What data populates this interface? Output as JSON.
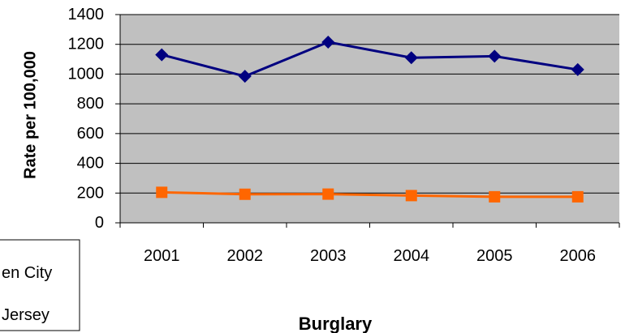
{
  "chart_data": {
    "type": "line",
    "title": "",
    "xlabel": "Burglary",
    "ylabel": "Rate per 100,000",
    "categories": [
      "2001",
      "2002",
      "2003",
      "2004",
      "2005",
      "2006"
    ],
    "ylim": [
      0,
      1400
    ],
    "yticks": [
      0,
      200,
      400,
      600,
      800,
      1000,
      1200,
      1400
    ],
    "grid": true,
    "plot_background": "#c0c0c0",
    "legend_position": "bottom-left",
    "series": [
      {
        "name": "...en City",
        "legend_text": "en City",
        "color": "#000080",
        "marker": "diamond",
        "values": [
          1130,
          985,
          1215,
          1110,
          1120,
          1030
        ]
      },
      {
        "name": "...Jersey",
        "legend_text": "Jersey",
        "color": "#ff6600",
        "marker": "square",
        "values": [
          205,
          192,
          193,
          183,
          175,
          175
        ]
      }
    ]
  }
}
